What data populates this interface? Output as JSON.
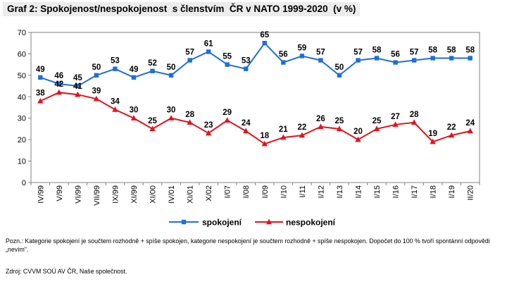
{
  "title": "Graf 2: Spokojenost/nespokojenost  s členstvím  ČR v NATO 1999-2020  (v %)",
  "note": "Pozn.: Kategorie spokojení je součtem rozhodně + spíše spokojen, kategorie nespokojení je součtem rozhodně + spíše nespokojen. Dopočet do 100 % tvoří spontánní odpovědi „nevím\".",
  "source": "Zdroj: CVVM SOÚ AV ČR, Naše společnost.",
  "colors": {
    "spokojeni": "#1f6fd6",
    "nespokojeni": "#e0141e"
  },
  "chart_data": {
    "type": "line",
    "categories": [
      "IV/99",
      "V/99",
      "VI/99",
      "VII/99",
      "IX/99",
      "XI/99",
      "XI/00",
      "IV/01",
      "XI/01",
      "X/02",
      "I/07",
      "I/08",
      "I/09",
      "I/10",
      "I/11",
      "I/12",
      "I/13",
      "I/14",
      "I/15",
      "I/16",
      "I/17",
      "I/18",
      "I/19",
      "II/20"
    ],
    "series": [
      {
        "name": "spokojení",
        "values": [
          49,
          46,
          45,
          50,
          53,
          49,
          52,
          50,
          57,
          61,
          55,
          53,
          65,
          56,
          59,
          57,
          50,
          57,
          58,
          56,
          57,
          58,
          58,
          58
        ]
      },
      {
        "name": "nespokojení",
        "values": [
          38,
          42,
          41,
          39,
          34,
          30,
          25,
          30,
          28,
          23,
          29,
          24,
          18,
          21,
          22,
          26,
          25,
          20,
          25,
          27,
          28,
          19,
          22,
          24
        ]
      }
    ],
    "series_labels": [
      [
        "49",
        "46",
        "45",
        "50",
        "53",
        "49",
        "52",
        "50",
        "57",
        "61",
        "55",
        "53",
        "65",
        "56",
        "59",
        "57",
        "50",
        "57",
        "58",
        "56",
        "57",
        "58",
        "58",
        "58"
      ],
      [
        "38",
        "42",
        "41",
        "39",
        "34",
        "30",
        "25",
        "30",
        "28",
        "23",
        "29",
        "24",
        "18",
        "21",
        "22",
        "26",
        "25",
        "20",
        "25",
        "27",
        "28",
        "19",
        "22",
        "24"
      ]
    ],
    "yticks": [
      "0",
      "10",
      "20",
      "30",
      "40",
      "50",
      "60",
      "70"
    ],
    "ylim": [
      0,
      70
    ],
    "grid": false,
    "legend": "bottom-center"
  }
}
